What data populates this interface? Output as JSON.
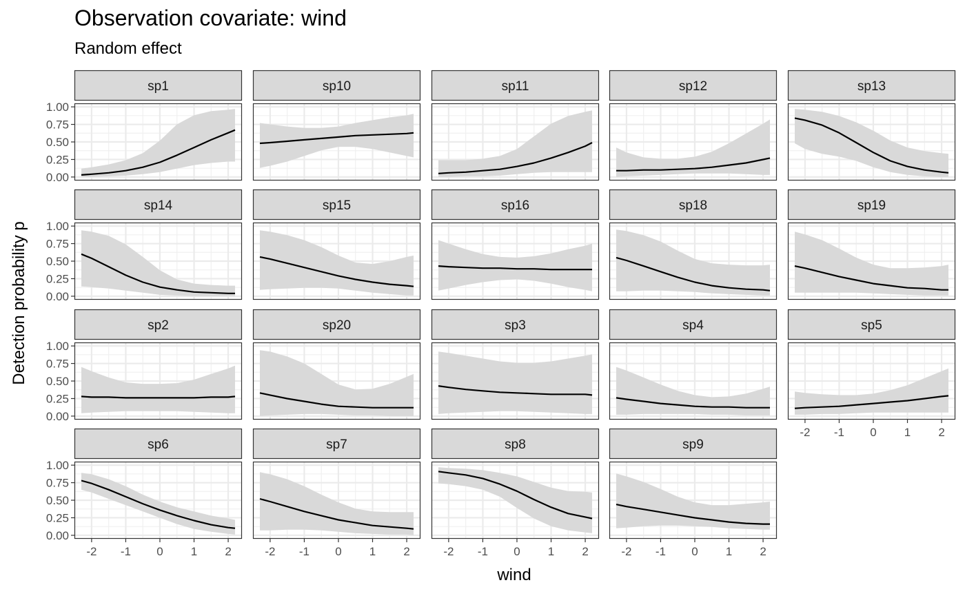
{
  "chart_data": {
    "type": "line",
    "title": "Observation covariate: wind",
    "subtitle": "Random effect",
    "xlabel": "wind",
    "ylabel": "Detection probability p",
    "xlim": [
      -2.3,
      2.2
    ],
    "ylim": [
      0,
      1
    ],
    "xticks": [
      "-2",
      "-1",
      "0",
      "1",
      "2"
    ],
    "yticks": [
      "0.00",
      "0.25",
      "0.50",
      "0.75",
      "1.00"
    ],
    "grid": true,
    "band_color": "#d9d9d9",
    "line_color": "#000000",
    "x": [
      -2.3,
      -2.0,
      -1.5,
      -1.0,
      -0.5,
      0.0,
      0.5,
      1.0,
      1.5,
      2.0,
      2.2
    ],
    "panels": [
      {
        "name": "sp1",
        "mean": [
          0.03,
          0.04,
          0.06,
          0.09,
          0.14,
          0.21,
          0.31,
          0.42,
          0.53,
          0.63,
          0.67
        ],
        "lower": [
          0.0,
          0.0,
          0.01,
          0.02,
          0.04,
          0.07,
          0.12,
          0.17,
          0.2,
          0.22,
          0.22
        ],
        "upper": [
          0.12,
          0.14,
          0.18,
          0.24,
          0.34,
          0.52,
          0.75,
          0.88,
          0.94,
          0.96,
          0.97
        ]
      },
      {
        "name": "sp10",
        "mean": [
          0.48,
          0.49,
          0.51,
          0.53,
          0.55,
          0.57,
          0.59,
          0.6,
          0.61,
          0.62,
          0.63
        ],
        "lower": [
          0.13,
          0.16,
          0.22,
          0.3,
          0.38,
          0.43,
          0.43,
          0.4,
          0.35,
          0.3,
          0.28
        ],
        "upper": [
          0.77,
          0.75,
          0.72,
          0.7,
          0.7,
          0.72,
          0.77,
          0.81,
          0.85,
          0.88,
          0.9
        ]
      },
      {
        "name": "sp11",
        "mean": [
          0.05,
          0.06,
          0.07,
          0.09,
          0.11,
          0.15,
          0.2,
          0.27,
          0.35,
          0.44,
          0.49
        ],
        "lower": [
          0.0,
          0.0,
          0.01,
          0.01,
          0.02,
          0.04,
          0.06,
          0.07,
          0.07,
          0.07,
          0.07
        ],
        "upper": [
          0.24,
          0.24,
          0.24,
          0.26,
          0.3,
          0.4,
          0.58,
          0.76,
          0.87,
          0.93,
          0.95
        ]
      },
      {
        "name": "sp12",
        "mean": [
          0.09,
          0.09,
          0.1,
          0.1,
          0.11,
          0.12,
          0.14,
          0.17,
          0.2,
          0.25,
          0.27
        ],
        "lower": [
          0.0,
          0.01,
          0.02,
          0.03,
          0.04,
          0.05,
          0.05,
          0.05,
          0.04,
          0.03,
          0.03
        ],
        "upper": [
          0.42,
          0.35,
          0.28,
          0.26,
          0.26,
          0.29,
          0.36,
          0.48,
          0.62,
          0.76,
          0.82
        ]
      },
      {
        "name": "sp13",
        "mean": [
          0.84,
          0.81,
          0.74,
          0.63,
          0.49,
          0.35,
          0.23,
          0.15,
          0.1,
          0.07,
          0.06
        ],
        "lower": [
          0.48,
          0.4,
          0.33,
          0.29,
          0.23,
          0.14,
          0.07,
          0.03,
          0.01,
          0.0,
          0.0
        ],
        "upper": [
          0.97,
          0.96,
          0.93,
          0.87,
          0.78,
          0.66,
          0.52,
          0.42,
          0.37,
          0.34,
          0.33
        ]
      },
      {
        "name": "sp14",
        "mean": [
          0.6,
          0.54,
          0.42,
          0.3,
          0.2,
          0.13,
          0.09,
          0.06,
          0.05,
          0.04,
          0.04
        ],
        "lower": [
          0.14,
          0.13,
          0.11,
          0.08,
          0.05,
          0.02,
          0.01,
          0.0,
          0.0,
          0.0,
          0.0
        ],
        "upper": [
          0.94,
          0.92,
          0.86,
          0.74,
          0.56,
          0.37,
          0.24,
          0.18,
          0.16,
          0.15,
          0.15
        ]
      },
      {
        "name": "sp15",
        "mean": [
          0.56,
          0.53,
          0.47,
          0.41,
          0.35,
          0.29,
          0.24,
          0.2,
          0.17,
          0.15,
          0.14
        ],
        "lower": [
          0.09,
          0.1,
          0.11,
          0.12,
          0.12,
          0.11,
          0.08,
          0.05,
          0.03,
          0.01,
          0.01
        ],
        "upper": [
          0.94,
          0.92,
          0.87,
          0.8,
          0.7,
          0.58,
          0.48,
          0.46,
          0.5,
          0.56,
          0.58
        ]
      },
      {
        "name": "sp16",
        "mean": [
          0.43,
          0.42,
          0.41,
          0.4,
          0.4,
          0.39,
          0.39,
          0.38,
          0.38,
          0.38,
          0.38
        ],
        "lower": [
          0.08,
          0.11,
          0.16,
          0.2,
          0.23,
          0.24,
          0.22,
          0.18,
          0.13,
          0.09,
          0.07
        ],
        "upper": [
          0.8,
          0.75,
          0.67,
          0.6,
          0.56,
          0.55,
          0.57,
          0.61,
          0.67,
          0.72,
          0.75
        ]
      },
      {
        "name": "sp18",
        "mean": [
          0.55,
          0.51,
          0.43,
          0.35,
          0.27,
          0.2,
          0.15,
          0.12,
          0.1,
          0.09,
          0.08
        ],
        "lower": [
          0.07,
          0.07,
          0.08,
          0.08,
          0.07,
          0.06,
          0.04,
          0.03,
          0.02,
          0.01,
          0.01
        ],
        "upper": [
          0.95,
          0.93,
          0.87,
          0.78,
          0.65,
          0.53,
          0.47,
          0.45,
          0.44,
          0.44,
          0.45
        ]
      },
      {
        "name": "sp19",
        "mean": [
          0.43,
          0.4,
          0.34,
          0.28,
          0.23,
          0.18,
          0.15,
          0.12,
          0.11,
          0.09,
          0.09
        ],
        "lower": [
          0.05,
          0.05,
          0.05,
          0.05,
          0.05,
          0.04,
          0.03,
          0.02,
          0.01,
          0.01,
          0.01
        ],
        "upper": [
          0.92,
          0.88,
          0.8,
          0.68,
          0.55,
          0.45,
          0.4,
          0.4,
          0.41,
          0.43,
          0.45
        ]
      },
      {
        "name": "sp2",
        "mean": [
          0.28,
          0.27,
          0.27,
          0.26,
          0.26,
          0.26,
          0.26,
          0.26,
          0.27,
          0.27,
          0.28
        ],
        "lower": [
          0.04,
          0.05,
          0.06,
          0.07,
          0.07,
          0.07,
          0.07,
          0.06,
          0.05,
          0.04,
          0.04
        ],
        "upper": [
          0.7,
          0.64,
          0.55,
          0.48,
          0.46,
          0.46,
          0.47,
          0.52,
          0.6,
          0.68,
          0.72
        ]
      },
      {
        "name": "sp20",
        "mean": [
          0.33,
          0.3,
          0.25,
          0.21,
          0.17,
          0.14,
          0.13,
          0.12,
          0.12,
          0.12,
          0.12
        ],
        "lower": [
          0.0,
          0.01,
          0.02,
          0.03,
          0.03,
          0.02,
          0.01,
          0.01,
          0.0,
          0.0,
          0.0
        ],
        "upper": [
          0.94,
          0.92,
          0.85,
          0.75,
          0.6,
          0.45,
          0.38,
          0.39,
          0.46,
          0.56,
          0.6
        ]
      },
      {
        "name": "sp3",
        "mean": [
          0.43,
          0.41,
          0.38,
          0.36,
          0.34,
          0.33,
          0.32,
          0.31,
          0.31,
          0.31,
          0.3
        ],
        "lower": [
          0.03,
          0.04,
          0.05,
          0.06,
          0.07,
          0.07,
          0.06,
          0.05,
          0.04,
          0.03,
          0.03
        ],
        "upper": [
          0.92,
          0.9,
          0.86,
          0.82,
          0.78,
          0.76,
          0.76,
          0.78,
          0.82,
          0.86,
          0.88
        ]
      },
      {
        "name": "sp4",
        "mean": [
          0.26,
          0.24,
          0.21,
          0.18,
          0.16,
          0.14,
          0.13,
          0.13,
          0.12,
          0.12,
          0.12
        ],
        "lower": [
          0.02,
          0.02,
          0.03,
          0.03,
          0.03,
          0.03,
          0.02,
          0.02,
          0.01,
          0.01,
          0.01
        ],
        "upper": [
          0.7,
          0.65,
          0.55,
          0.45,
          0.36,
          0.3,
          0.27,
          0.28,
          0.32,
          0.39,
          0.42
        ]
      },
      {
        "name": "sp5",
        "mean": [
          0.11,
          0.12,
          0.13,
          0.14,
          0.16,
          0.18,
          0.2,
          0.22,
          0.25,
          0.28,
          0.29
        ],
        "lower": [
          0.02,
          0.02,
          0.03,
          0.03,
          0.04,
          0.05,
          0.05,
          0.05,
          0.05,
          0.05,
          0.05
        ],
        "upper": [
          0.35,
          0.33,
          0.31,
          0.3,
          0.3,
          0.32,
          0.37,
          0.44,
          0.54,
          0.64,
          0.68
        ]
      },
      {
        "name": "sp6",
        "mean": [
          0.78,
          0.74,
          0.65,
          0.55,
          0.45,
          0.36,
          0.28,
          0.21,
          0.15,
          0.11,
          0.1
        ],
        "lower": [
          0.65,
          0.61,
          0.52,
          0.43,
          0.34,
          0.25,
          0.16,
          0.09,
          0.05,
          0.02,
          0.01
        ],
        "upper": [
          0.89,
          0.87,
          0.8,
          0.7,
          0.58,
          0.48,
          0.4,
          0.34,
          0.28,
          0.24,
          0.22
        ]
      },
      {
        "name": "sp7",
        "mean": [
          0.52,
          0.48,
          0.41,
          0.34,
          0.28,
          0.22,
          0.18,
          0.14,
          0.12,
          0.1,
          0.09
        ],
        "lower": [
          0.07,
          0.07,
          0.08,
          0.08,
          0.07,
          0.05,
          0.03,
          0.02,
          0.01,
          0.01,
          0.0
        ],
        "upper": [
          0.9,
          0.87,
          0.8,
          0.7,
          0.58,
          0.47,
          0.38,
          0.34,
          0.33,
          0.33,
          0.33
        ]
      },
      {
        "name": "sp8",
        "mean": [
          0.91,
          0.89,
          0.86,
          0.81,
          0.73,
          0.63,
          0.51,
          0.4,
          0.31,
          0.26,
          0.24
        ],
        "lower": [
          0.74,
          0.73,
          0.7,
          0.65,
          0.55,
          0.39,
          0.24,
          0.13,
          0.07,
          0.04,
          0.03
        ],
        "upper": [
          0.97,
          0.96,
          0.95,
          0.93,
          0.89,
          0.84,
          0.76,
          0.68,
          0.63,
          0.62,
          0.61
        ]
      },
      {
        "name": "sp9",
        "mean": [
          0.44,
          0.41,
          0.37,
          0.33,
          0.29,
          0.25,
          0.22,
          0.19,
          0.17,
          0.16,
          0.16
        ],
        "lower": [
          0.1,
          0.11,
          0.13,
          0.14,
          0.14,
          0.13,
          0.12,
          0.1,
          0.09,
          0.08,
          0.08
        ],
        "upper": [
          0.88,
          0.84,
          0.76,
          0.66,
          0.55,
          0.47,
          0.43,
          0.43,
          0.45,
          0.47,
          0.48
        ]
      }
    ]
  }
}
